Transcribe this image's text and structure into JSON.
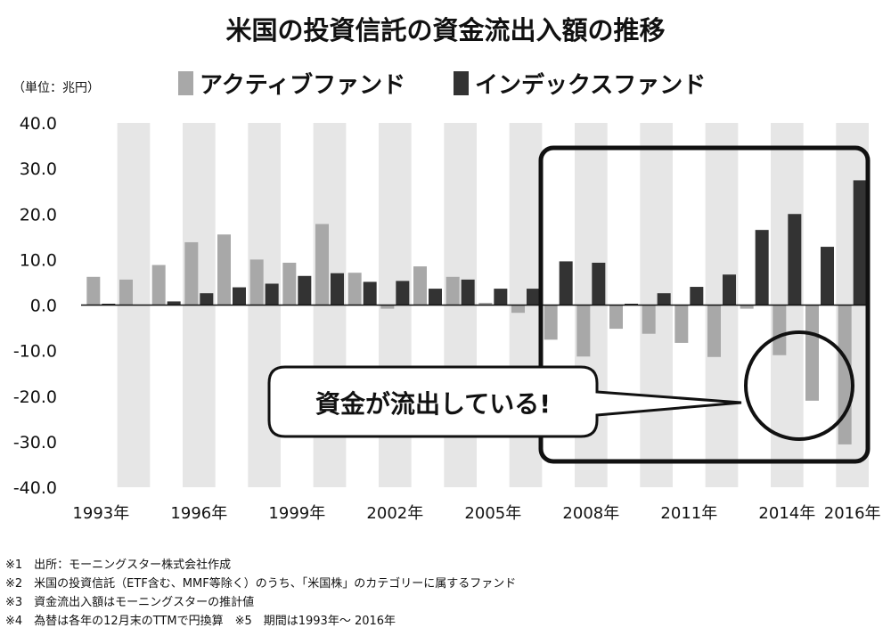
{
  "chart_data": {
    "type": "bar",
    "title": "米国の投資信託の資金流出入額の推移",
    "unit_label": "（単位：兆円）",
    "ylim": [
      -40,
      40
    ],
    "yticks": [
      "40.0",
      "30.0",
      "20.0",
      "10.0",
      "0.0",
      "-10.0",
      "-20.0",
      "-30.0",
      "-40.0"
    ],
    "ytick_values": [
      40,
      30,
      20,
      10,
      0,
      -10,
      -20,
      -30,
      -40
    ],
    "years": [
      1993,
      1994,
      1995,
      1996,
      1997,
      1998,
      1999,
      2000,
      2001,
      2002,
      2003,
      2004,
      2005,
      2006,
      2007,
      2008,
      2009,
      2010,
      2011,
      2012,
      2013,
      2014,
      2015,
      2016
    ],
    "x_tick_labels": [
      {
        "year": 1993,
        "label": "1993年"
      },
      {
        "year": 1996,
        "label": "1996年"
      },
      {
        "year": 1999,
        "label": "1999年"
      },
      {
        "year": 2002,
        "label": "2002年"
      },
      {
        "year": 2005,
        "label": "2005年"
      },
      {
        "year": 2008,
        "label": "2008年"
      },
      {
        "year": 2011,
        "label": "2011年"
      },
      {
        "year": 2014,
        "label": "2014年"
      },
      {
        "year": 2016,
        "label": "2016年"
      }
    ],
    "series": [
      {
        "name": "アクティブファンド",
        "color": "#a8a8a8",
        "values": [
          6.2,
          5.6,
          8.8,
          13.8,
          15.5,
          10.0,
          9.3,
          17.8,
          7.1,
          -0.8,
          8.5,
          6.2,
          0.5,
          -1.7,
          -7.6,
          -11.3,
          -5.2,
          -6.3,
          -8.3,
          -11.4,
          -0.8,
          -11.0,
          -21.0,
          -30.6
        ]
      },
      {
        "name": "インデックスファンド",
        "color": "#333333",
        "values": [
          0.3,
          0.0,
          0.8,
          2.6,
          3.9,
          4.7,
          6.4,
          7.0,
          5.1,
          5.3,
          3.6,
          5.6,
          3.6,
          3.6,
          9.6,
          9.3,
          0.3,
          2.6,
          4.0,
          6.7,
          16.5,
          20.0,
          12.8,
          27.4
        ]
      }
    ],
    "grid": false,
    "legend_position": "top",
    "background": "alternating grey year bands",
    "highlight_box": {
      "from_year": 2007,
      "to_year": 2016
    },
    "callout": {
      "text": "資金が流出している!",
      "target": "2014-2016 active fund outflows"
    }
  },
  "footnotes": [
    "※1　出所：モーニングスター株式会社作成",
    "※2　米国の投資信託（ETF含む、MMF等除く）のうち、「米国株」のカテゴリーに属するファンド",
    "※3　資金流出入額はモーニングスターの推計値",
    "※4　為替は各年の12月末のTTMで円換算　※5　期間は1993年～ 2016年"
  ]
}
